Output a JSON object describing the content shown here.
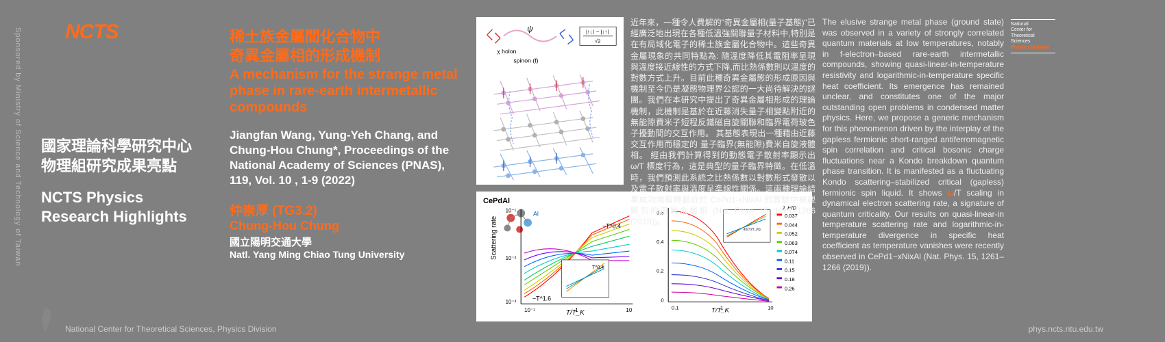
{
  "sponsor": "Sponsored by Ministry of Science and Technology of Taiwan",
  "logo_text": "NCTS",
  "org": {
    "zh_line1": "國家理論科學研究中心",
    "zh_line2": "物理組研究成果亮點",
    "en_line1": "NCTS  Physics",
    "en_line2": "Research Highlights"
  },
  "title": {
    "zh_line1": "稀土族金屬間化合物中",
    "zh_line2": "奇異金屬相的形成機制",
    "en": "A mechanism for the strange metal phase in rare-earth intermetallic compounds"
  },
  "authors": "Jiangfan Wang, Yung-Yeh Chang, and Chung-Hou Chung*, Proceedings of the National Academy of Sciences (PNAS), 119, Vol. 10 , 1-9 (2022)",
  "pi": {
    "zh": "仲崇厚  (TG3.2)",
    "en": "Chung-Hou Chung",
    "affil_zh": "國立陽明交通大學",
    "affil_en": "Natl. Yang Ming Chiao Tung University"
  },
  "abstract_zh": "近年來，一種令人費解的\"奇異金屬相(量子基態)\"已經廣泛地出現在各種低溫強關聯量子材料中,特別是在有局域化電子的稀土族金屬化合物中。這些奇異金屬現象的共同特點為: 隨溫度降低其電阻率呈現與溫度接近線性的方式下降,而比熱係數則以溫度的對數方式上升。目前此種奇異金屬態的形成原因與機制至今仍是凝態物理界公認的一大尚待解決的謎團。我們在本研究中提出了奇異金屬相形成的理論機制，此機制是基於在近藤消失量子相變點附近的無能隙費米子短程反鐵磁自旋關聯和臨界電荷玻色子擾動間的交互作用。 其基態表現出一種藉由近藤交互作用而穩定的 量子臨界(無能隙)費米自旋液體相。 經由我們計算得到的動態電子散射率顯示出 ω/T 標度行為，這是典型的量子臨界特徵。在低溫時，我們預測此系統之比熱係數以對數形式發散以及電子散射率與溫度呈準線性關係。這兩種理論結果成功地解釋最近於 CePd1-xNixAl 的實驗中被觀察到的奇異金屬相 (Nat. Phys. 15, 1261–1266 (2019))。",
  "abstract_en_1": "The elusive strange metal phase (ground state) was observed in a variety of strongly correlated quantum materials at low temperatures, notably in f-electron–based rare-earth intermetallic compounds, showing quasi-linear-in-temperature resistivity and logarithmic-in-temperature specific heat coefficient. Its emergence has remained unclear, and constitutes one of the major outstanding open problems in condensed matter physics. Here, we propose a generic mechanism for this phenomenon driven by the interplay of the gapless fermionic short-ranged antiferromagnetic spin correlation and critical bosonic charge fluctuations near a Kondo breakdown quantum phase transition. It is manifested as a fluctuating Kondo scattering–stabilized critical (gapless) fermionic spin liquid. It shows ",
  "abstract_en_omega": "ω",
  "abstract_en_2": "/T scaling in dynamical electron scattering rate, a signature of quantum criticality. Our results on quasi-linear-in temperature scattering rate and logarithmic-in-temperature divergence in specific heat coefficient as temperature vanishes were recently observed in CePd1−xNixAl (Nat. Phys. 15, 1261–1266 (2019)).",
  "badge": {
    "line1": "National",
    "line2": "Center for",
    "line3": "Theoretical",
    "line4": "Sciences",
    "phys": "Physics Division"
  },
  "footer": {
    "left": "National Center for Theoretical Sciences, Physics Division",
    "right": "phys.ncts.ntu.edu.tw"
  },
  "fig1": {
    "holon_label": "χ holon",
    "spinon_label": "spinon (f)",
    "psi_label": "ψ",
    "formula_top": "|↑↓⟩ − |↓↑⟩",
    "formula_bot": "√2",
    "colors": {
      "lattice_top": "#d4a5d4",
      "lattice_mid": "#c0c0c0",
      "lattice_bot": "#8ab4e8",
      "arrow_red": "#d43838",
      "arrow_blue": "#3a5fcd",
      "wave_pink": "#e8a4c8",
      "wave_blue": "#88aaee"
    }
  },
  "fig2": {
    "panel_a": {
      "label": "CePdAl",
      "ylabel": "Scattering rate",
      "xlabel": "T/T_K",
      "annot1": "~T^0.4",
      "annot2": "~T^1.6",
      "xlim": [
        0.1,
        10
      ],
      "ylim": [
        0.001,
        1
      ],
      "curve_colors": [
        "#ff0000",
        "#ff6600",
        "#cccc00",
        "#66cc00",
        "#00cc66",
        "#00cccc",
        "#0066ff",
        "#6600ff",
        "#cc00cc",
        "#800040"
      ]
    },
    "panel_b": {
      "xlabel": "T/T_K",
      "ylim": [
        0,
        0.6
      ],
      "legend": [
        "0.037",
        "0.044",
        "0.052",
        "0.063",
        "0.074",
        "0.11",
        "0.15",
        "0.18",
        "0.26"
      ],
      "legend_title": "J_H/D",
      "legend_colors": [
        "#ff0000",
        "#ff6600",
        "#cccc00",
        "#66cc00",
        "#00cccc",
        "#0066ff",
        "#3333cc",
        "#6600cc",
        "#cc0099"
      ]
    },
    "inset": {
      "annot": "T^0.4",
      "colors": [
        "#ff8800",
        "#ccaa00",
        "#00aa88",
        "#0088cc",
        "#aa00cc"
      ]
    }
  }
}
